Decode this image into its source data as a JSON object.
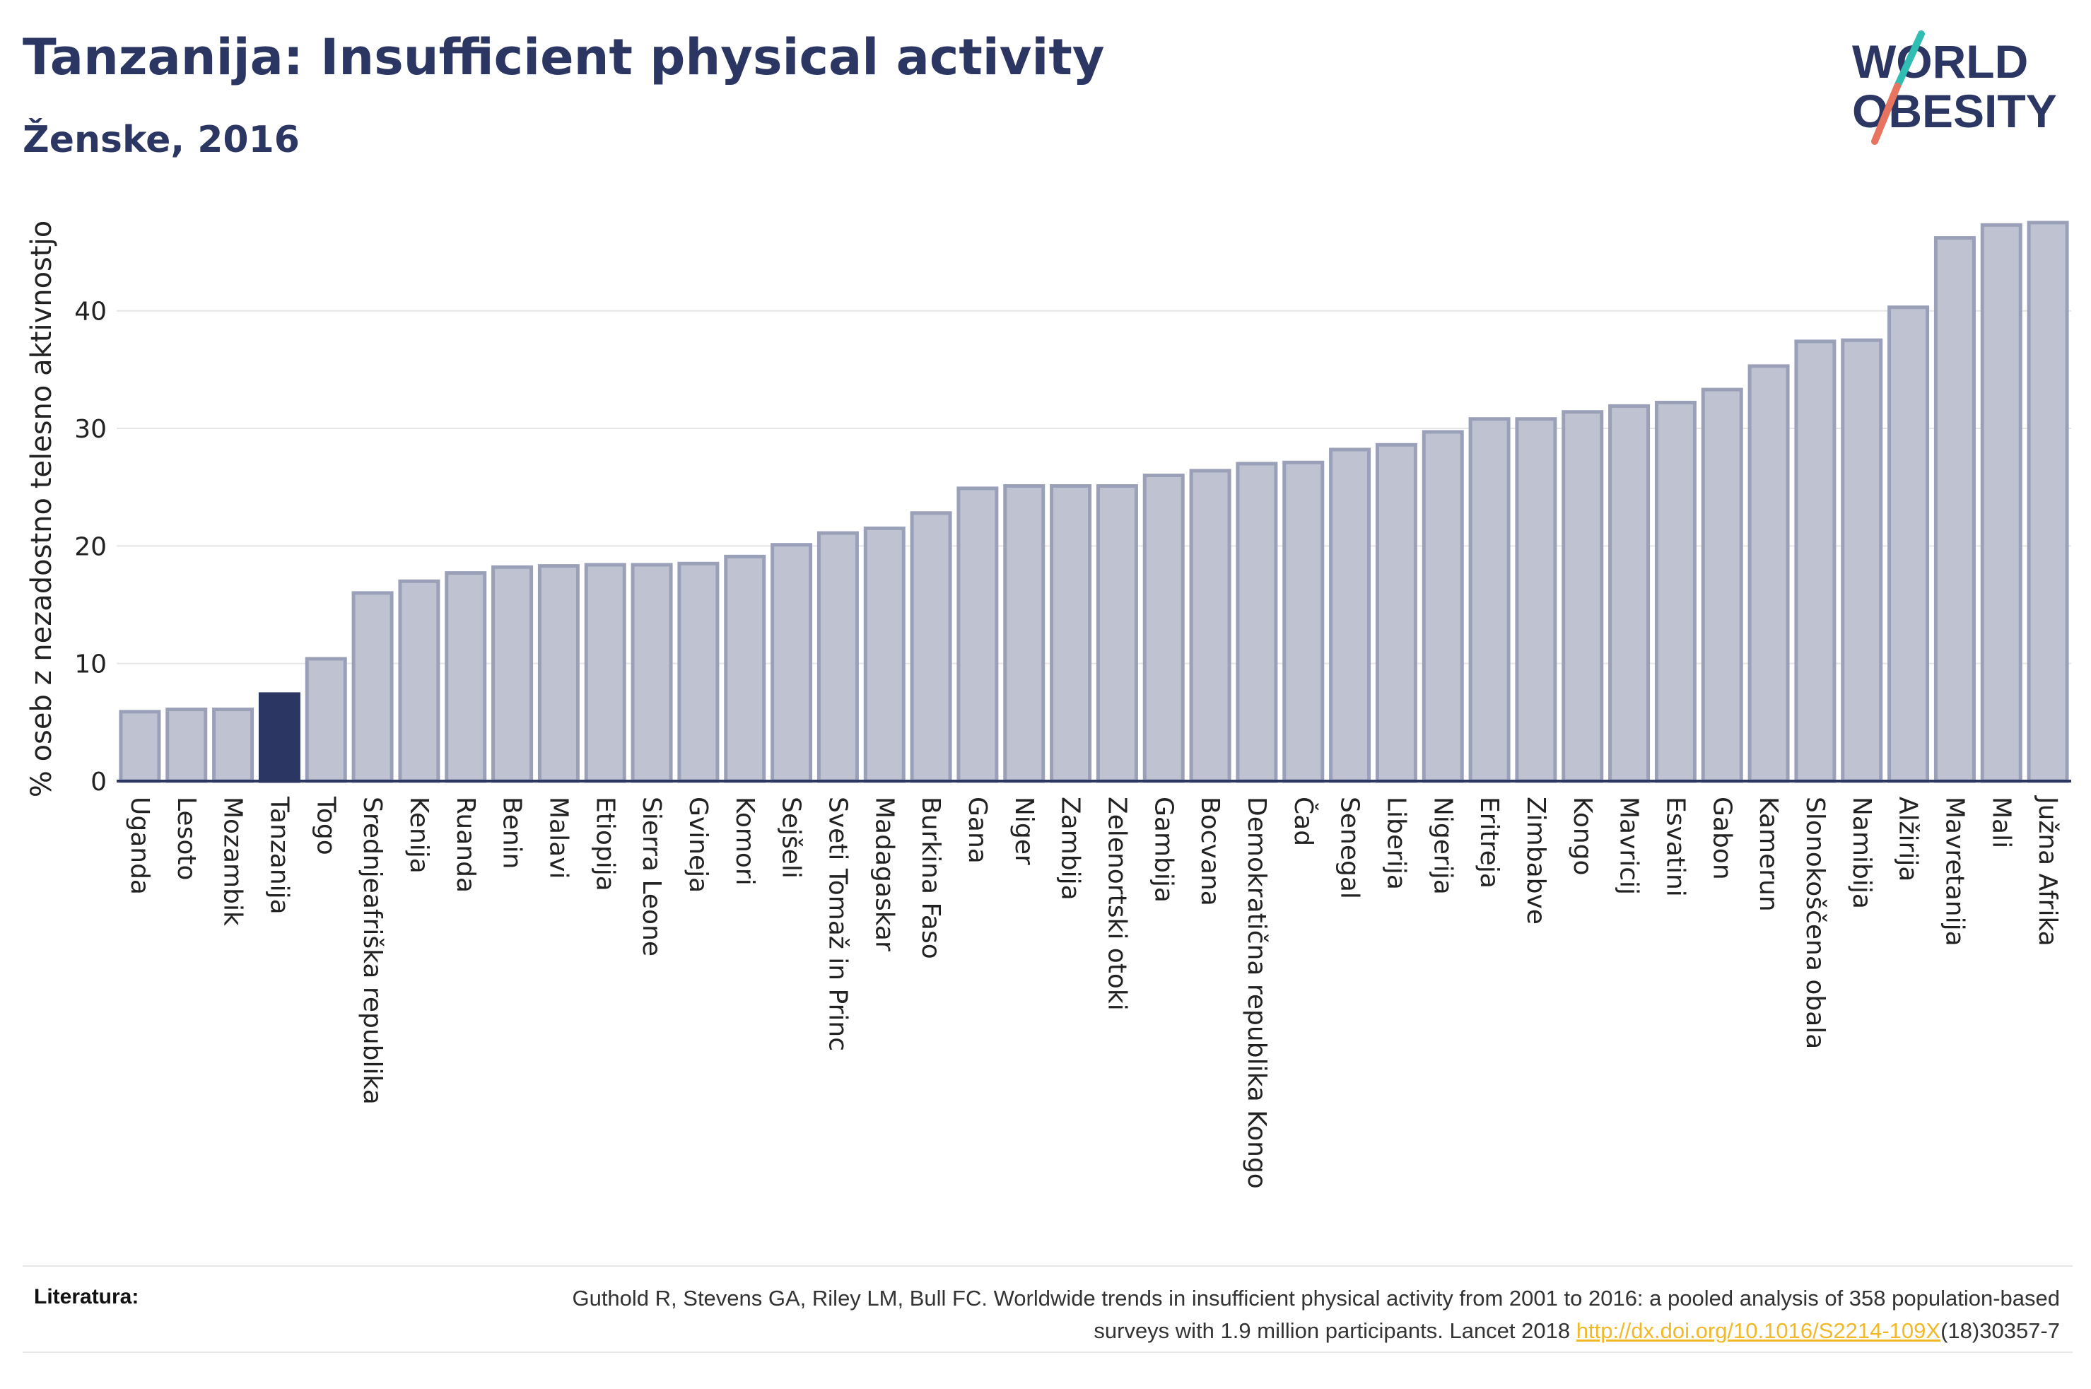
{
  "header": {
    "title": "Tanzanija: Insufficient physical activity",
    "subtitle": "Ženske, 2016"
  },
  "logo": {
    "line1": "WORLD",
    "line2": "OBESITY"
  },
  "colors": {
    "bar": "#bfc3d1",
    "bar_stroke": "#9aa0b8",
    "highlight": "#2b3663",
    "axis": "#2b3663",
    "grid": "#e6e6e6",
    "logo_teal": "#2fbdb4",
    "logo_coral": "#e8735f"
  },
  "chart_data": {
    "type": "bar",
    "ylabel": "% oseb z nezadostno telesno aktivnostjo",
    "ylim": [
      0,
      49
    ],
    "yticks": [
      0,
      10,
      20,
      30,
      40
    ],
    "grid": true,
    "highlight": "Tanzanija",
    "categories": [
      "Uganda",
      "Lesoto",
      "Mozambik",
      "Tanzanija",
      "Togo",
      "Srednjeafriška republika",
      "Kenija",
      "Ruanda",
      "Benin",
      "Malavi",
      "Etiopija",
      "Sierra Leone",
      "Gvineja",
      "Komori",
      "Sejšeli",
      "Sveti Tomaž in Princ",
      "Madagaskar",
      "Burkina Faso",
      "Gana",
      "Niger",
      "Zambija",
      "Zelenortski otoki",
      "Gambija",
      "Bocvana",
      "Demokratična republika Kongo",
      "Čad",
      "Senegal",
      "Liberija",
      "Nigerija",
      "Eritreja",
      "Zimbabve",
      "Kongo",
      "Mavricij",
      "Esvatini",
      "Gabon",
      "Kamerun",
      "Slonokoščena obala",
      "Namibija",
      "Alžirija",
      "Mavretanija",
      "Mali",
      "Južna Afrika"
    ],
    "values": [
      5.9,
      6.1,
      6.1,
      7.4,
      10.4,
      16.0,
      17.0,
      17.7,
      18.2,
      18.3,
      18.4,
      18.4,
      18.5,
      19.1,
      20.1,
      21.1,
      21.5,
      22.8,
      24.9,
      25.1,
      25.1,
      25.1,
      26.0,
      26.4,
      27.0,
      27.1,
      28.2,
      28.6,
      29.7,
      30.8,
      30.8,
      31.4,
      31.9,
      32.2,
      33.3,
      35.3,
      37.4,
      37.5,
      40.3,
      46.2,
      47.3,
      47.5
    ]
  },
  "references": {
    "label": "Literatura:",
    "text": "Guthold R, Stevens GA, Riley LM, Bull FC. Worldwide trends in insufficient physical activity from 2001 to 2016: a pooled analysis of 358 population-based surveys with 1.9 million participants. Lancet 2018",
    "link": "http://dx.doi.org/10.1016/S2214-109X",
    "link_suffix": "(18)30357-7"
  }
}
